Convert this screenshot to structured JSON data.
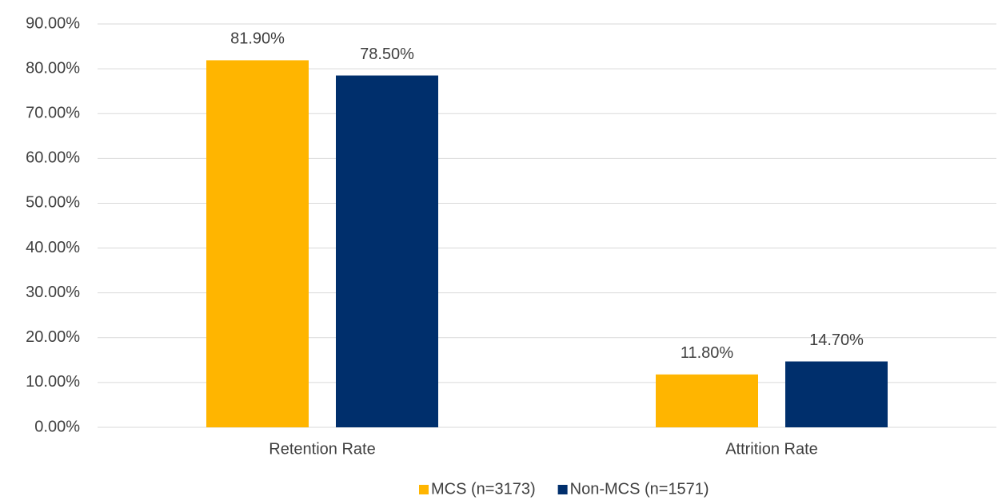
{
  "chart_data": {
    "type": "bar",
    "categories": [
      "Retention Rate",
      "Attrition Rate"
    ],
    "series": [
      {
        "name": "MCS (n=3173)",
        "color": "#ffb500",
        "values": [
          81.9,
          11.8
        ],
        "value_labels": [
          "81.90%",
          "11.80%"
        ]
      },
      {
        "name": "Non-MCS (n=1571)",
        "color": "#002f6c",
        "values": [
          78.5,
          14.7
        ],
        "value_labels": [
          "78.50%",
          "14.70%"
        ]
      }
    ],
    "ylim": [
      0,
      90
    ],
    "yticks": [
      {
        "value": 0,
        "label": "0.00%"
      },
      {
        "value": 10,
        "label": "10.00%"
      },
      {
        "value": 20,
        "label": "20.00%"
      },
      {
        "value": 30,
        "label": "30.00%"
      },
      {
        "value": 40,
        "label": "40.00%"
      },
      {
        "value": 50,
        "label": "50.00%"
      },
      {
        "value": 60,
        "label": "60.00%"
      },
      {
        "value": 70,
        "label": "70.00%"
      },
      {
        "value": 80,
        "label": "80.00%"
      },
      {
        "value": 90,
        "label": "90.00%"
      }
    ],
    "grid": true,
    "legend": "bottom"
  }
}
